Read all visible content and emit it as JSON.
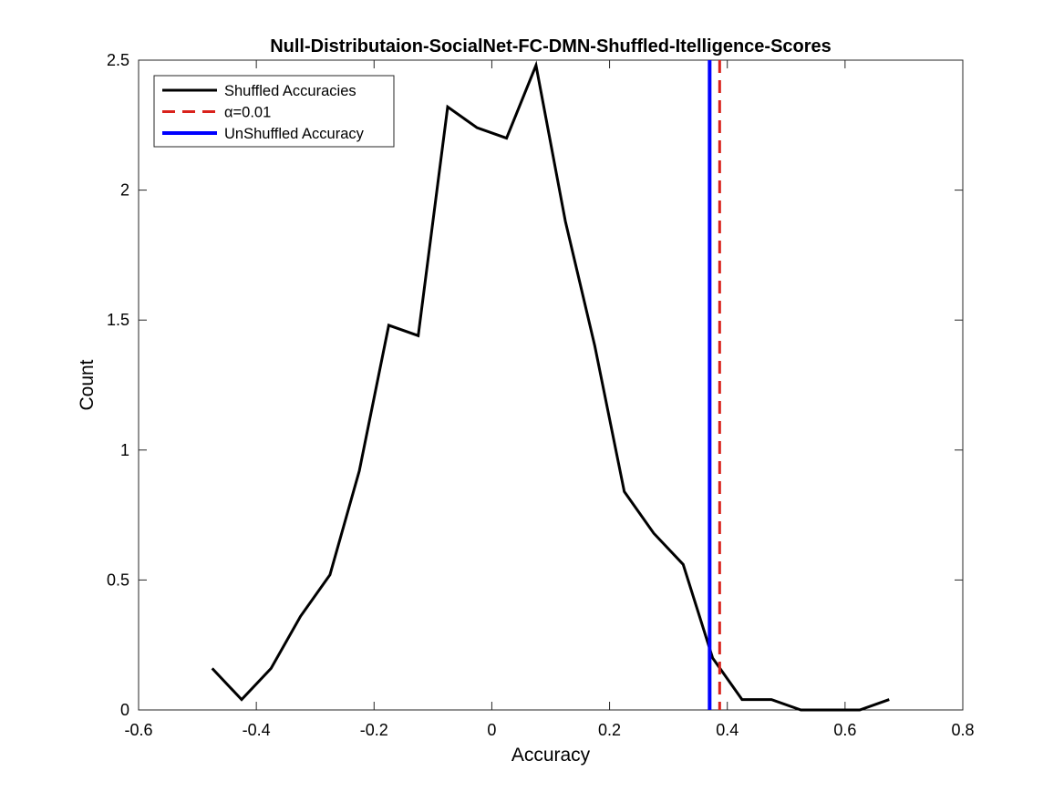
{
  "chart_data": {
    "type": "line",
    "title": "Null-Distributaion-SocialNet-FC-DMN-Shuffled-Itelligence-Scores",
    "xlabel": "Accuracy",
    "ylabel": "Count",
    "xlim": [
      -0.6,
      0.8
    ],
    "ylim": [
      0,
      2.5
    ],
    "xticks": [
      -0.6,
      -0.4,
      -0.2,
      0,
      0.2,
      0.4,
      0.6,
      0.8
    ],
    "xtick_labels": [
      "-0.6",
      "-0.4",
      "-0.2",
      "0",
      "0.2",
      "0.4",
      "0.6",
      "0.8"
    ],
    "yticks": [
      0,
      0.5,
      1,
      1.5,
      2,
      2.5
    ],
    "ytick_labels": [
      "0",
      "0.5",
      "1",
      "1.5",
      "2",
      "2.5"
    ],
    "grid": false,
    "legend_position": "top-left",
    "series": [
      {
        "name": "Shuffled Accuracies",
        "color": "#000000",
        "style": "solid",
        "x": [
          -0.475,
          -0.425,
          -0.375,
          -0.325,
          -0.275,
          -0.225,
          -0.175,
          -0.125,
          -0.075,
          -0.025,
          0.025,
          0.075,
          0.125,
          0.175,
          0.225,
          0.275,
          0.325,
          0.375,
          0.425,
          0.475,
          0.525,
          0.575,
          0.625,
          0.675
        ],
        "y": [
          0.16,
          0.04,
          0.16,
          0.36,
          0.52,
          0.92,
          1.48,
          1.44,
          2.32,
          2.24,
          2.2,
          2.48,
          1.88,
          1.4,
          0.84,
          0.68,
          0.56,
          0.2,
          0.04,
          0.04,
          0.0,
          0.0,
          0.0,
          0.04
        ]
      }
    ],
    "vlines": [
      {
        "name": "α=0.01",
        "x": 0.387,
        "color": "#d9221c",
        "style": "dashed"
      },
      {
        "name": "UnShuffled Accuracy",
        "x": 0.37,
        "color": "#0000ff",
        "style": "solid"
      }
    ]
  }
}
